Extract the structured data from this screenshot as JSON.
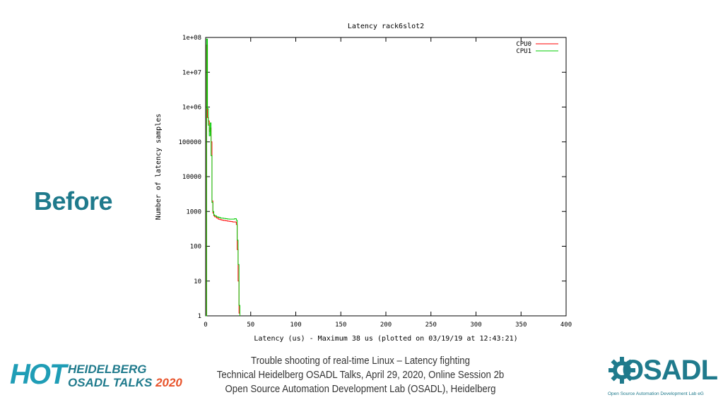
{
  "slide": {
    "heading": "Before",
    "footer_lines": [
      "Trouble shooting of real-time Linux – Latency fighting",
      "Technical Heidelberg OSADL Talks, April 29, 2020, Online Session 2b",
      "Open Source Automation Development Lab (OSADL), Heidelberg"
    ],
    "hot_logo": {
      "mark": "HOT",
      "line1": "HEIDELBERG",
      "line2a": "OSADL TALKS",
      "line2b": "2020"
    },
    "osadl_logo": {
      "mark": "OSADL",
      "tagline": "Open Source Automation Development Lab eG"
    },
    "colors": {
      "accent": "#1f7a8c",
      "logo_orange": "#e8542c"
    }
  },
  "chart_data": {
    "type": "line",
    "title": "Latency rack6slot2",
    "xlabel": "Latency (us) - Maximum 38 us (plotted on 03/19/19 at 12:43:21)",
    "ylabel": "Number of latency samples",
    "xlim": [
      0,
      400
    ],
    "ylim": [
      1,
      100000000
    ],
    "yscale": "log",
    "xticks": [
      0,
      50,
      100,
      150,
      200,
      250,
      300,
      350,
      400
    ],
    "yticks": [
      {
        "value": 1,
        "label": "1"
      },
      {
        "value": 10,
        "label": "10"
      },
      {
        "value": 100,
        "label": "100"
      },
      {
        "value": 1000,
        "label": "1000"
      },
      {
        "value": 10000,
        "label": "10000"
      },
      {
        "value": 100000,
        "label": "100000"
      },
      {
        "value": 1000000,
        "label": "1e+06"
      },
      {
        "value": 10000000,
        "label": "1e+07"
      },
      {
        "value": 100000000,
        "label": "1e+08"
      }
    ],
    "grid": false,
    "legend": "top-right",
    "series": [
      {
        "name": "CPU0",
        "color": "#ff0000",
        "x": [
          0,
          1,
          2,
          3,
          4,
          5,
          6,
          7,
          8,
          9,
          10,
          12,
          14,
          16,
          18,
          20,
          22,
          24,
          26,
          28,
          30,
          32,
          34,
          35,
          36,
          37,
          38
        ],
        "y": [
          1,
          60000000,
          500000,
          400000,
          200000,
          250000,
          100000,
          2000,
          900,
          750,
          700,
          650,
          600,
          580,
          560,
          550,
          540,
          530,
          520,
          510,
          500,
          500,
          420,
          80,
          10,
          1.2,
          1
        ]
      },
      {
        "name": "CPU1",
        "color": "#00cc00",
        "x": [
          0,
          1,
          2,
          3,
          4,
          5,
          6,
          7,
          8,
          9,
          10,
          12,
          14,
          16,
          18,
          20,
          22,
          24,
          26,
          28,
          30,
          32,
          34,
          35,
          36,
          37,
          38
        ],
        "y": [
          1,
          90000000,
          900000,
          300000,
          150000,
          350000,
          40000,
          1800,
          1000,
          800,
          750,
          700,
          680,
          650,
          640,
          630,
          620,
          610,
          600,
          600,
          600,
          620,
          560,
          150,
          30,
          2,
          1
        ]
      }
    ]
  }
}
